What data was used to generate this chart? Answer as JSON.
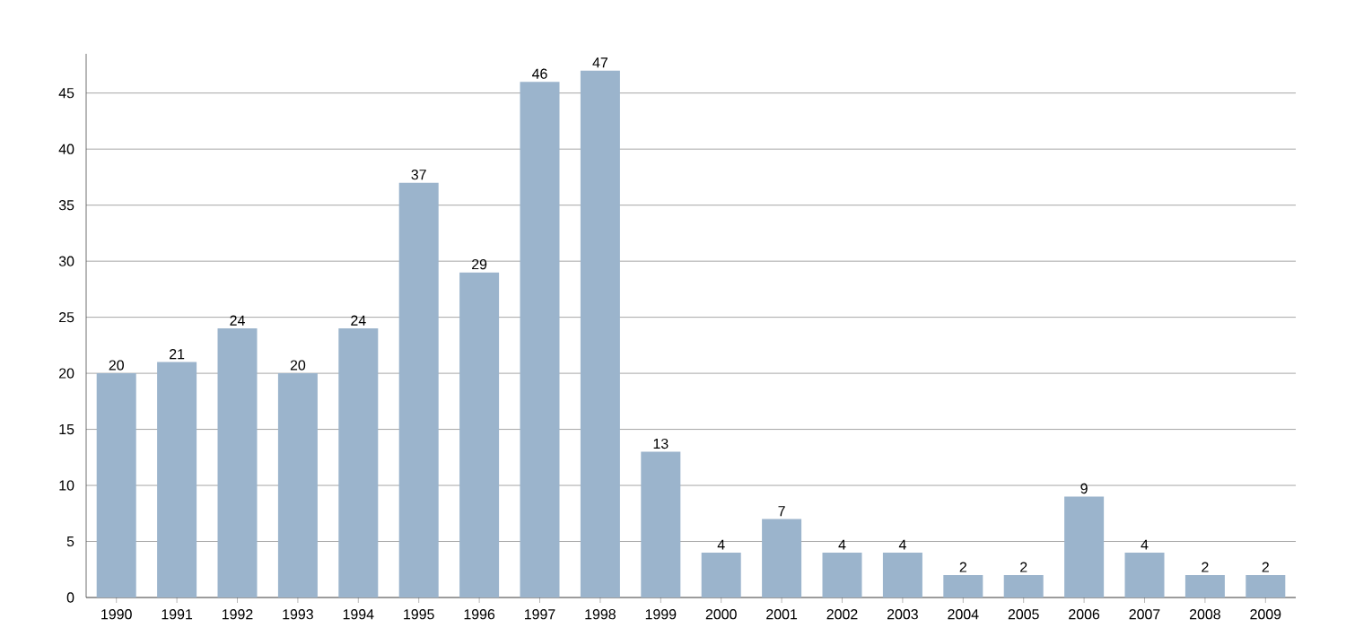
{
  "chart_data": {
    "type": "bar",
    "categories": [
      "1990",
      "1991",
      "1992",
      "1993",
      "1994",
      "1995",
      "1996",
      "1997",
      "1998",
      "1999",
      "2000",
      "2001",
      "2002",
      "2003",
      "2004",
      "2005",
      "2006",
      "2007",
      "2008",
      "2009"
    ],
    "values": [
      20,
      21,
      24,
      20,
      24,
      37,
      29,
      46,
      47,
      13,
      4,
      7,
      4,
      4,
      2,
      2,
      9,
      4,
      2,
      2
    ],
    "color": "#9bb4cc",
    "ylim": [
      0,
      48.5
    ],
    "yticks": [
      0,
      5,
      10,
      15,
      20,
      25,
      30,
      35,
      40,
      45
    ],
    "grid": "y",
    "data_labels": true
  }
}
